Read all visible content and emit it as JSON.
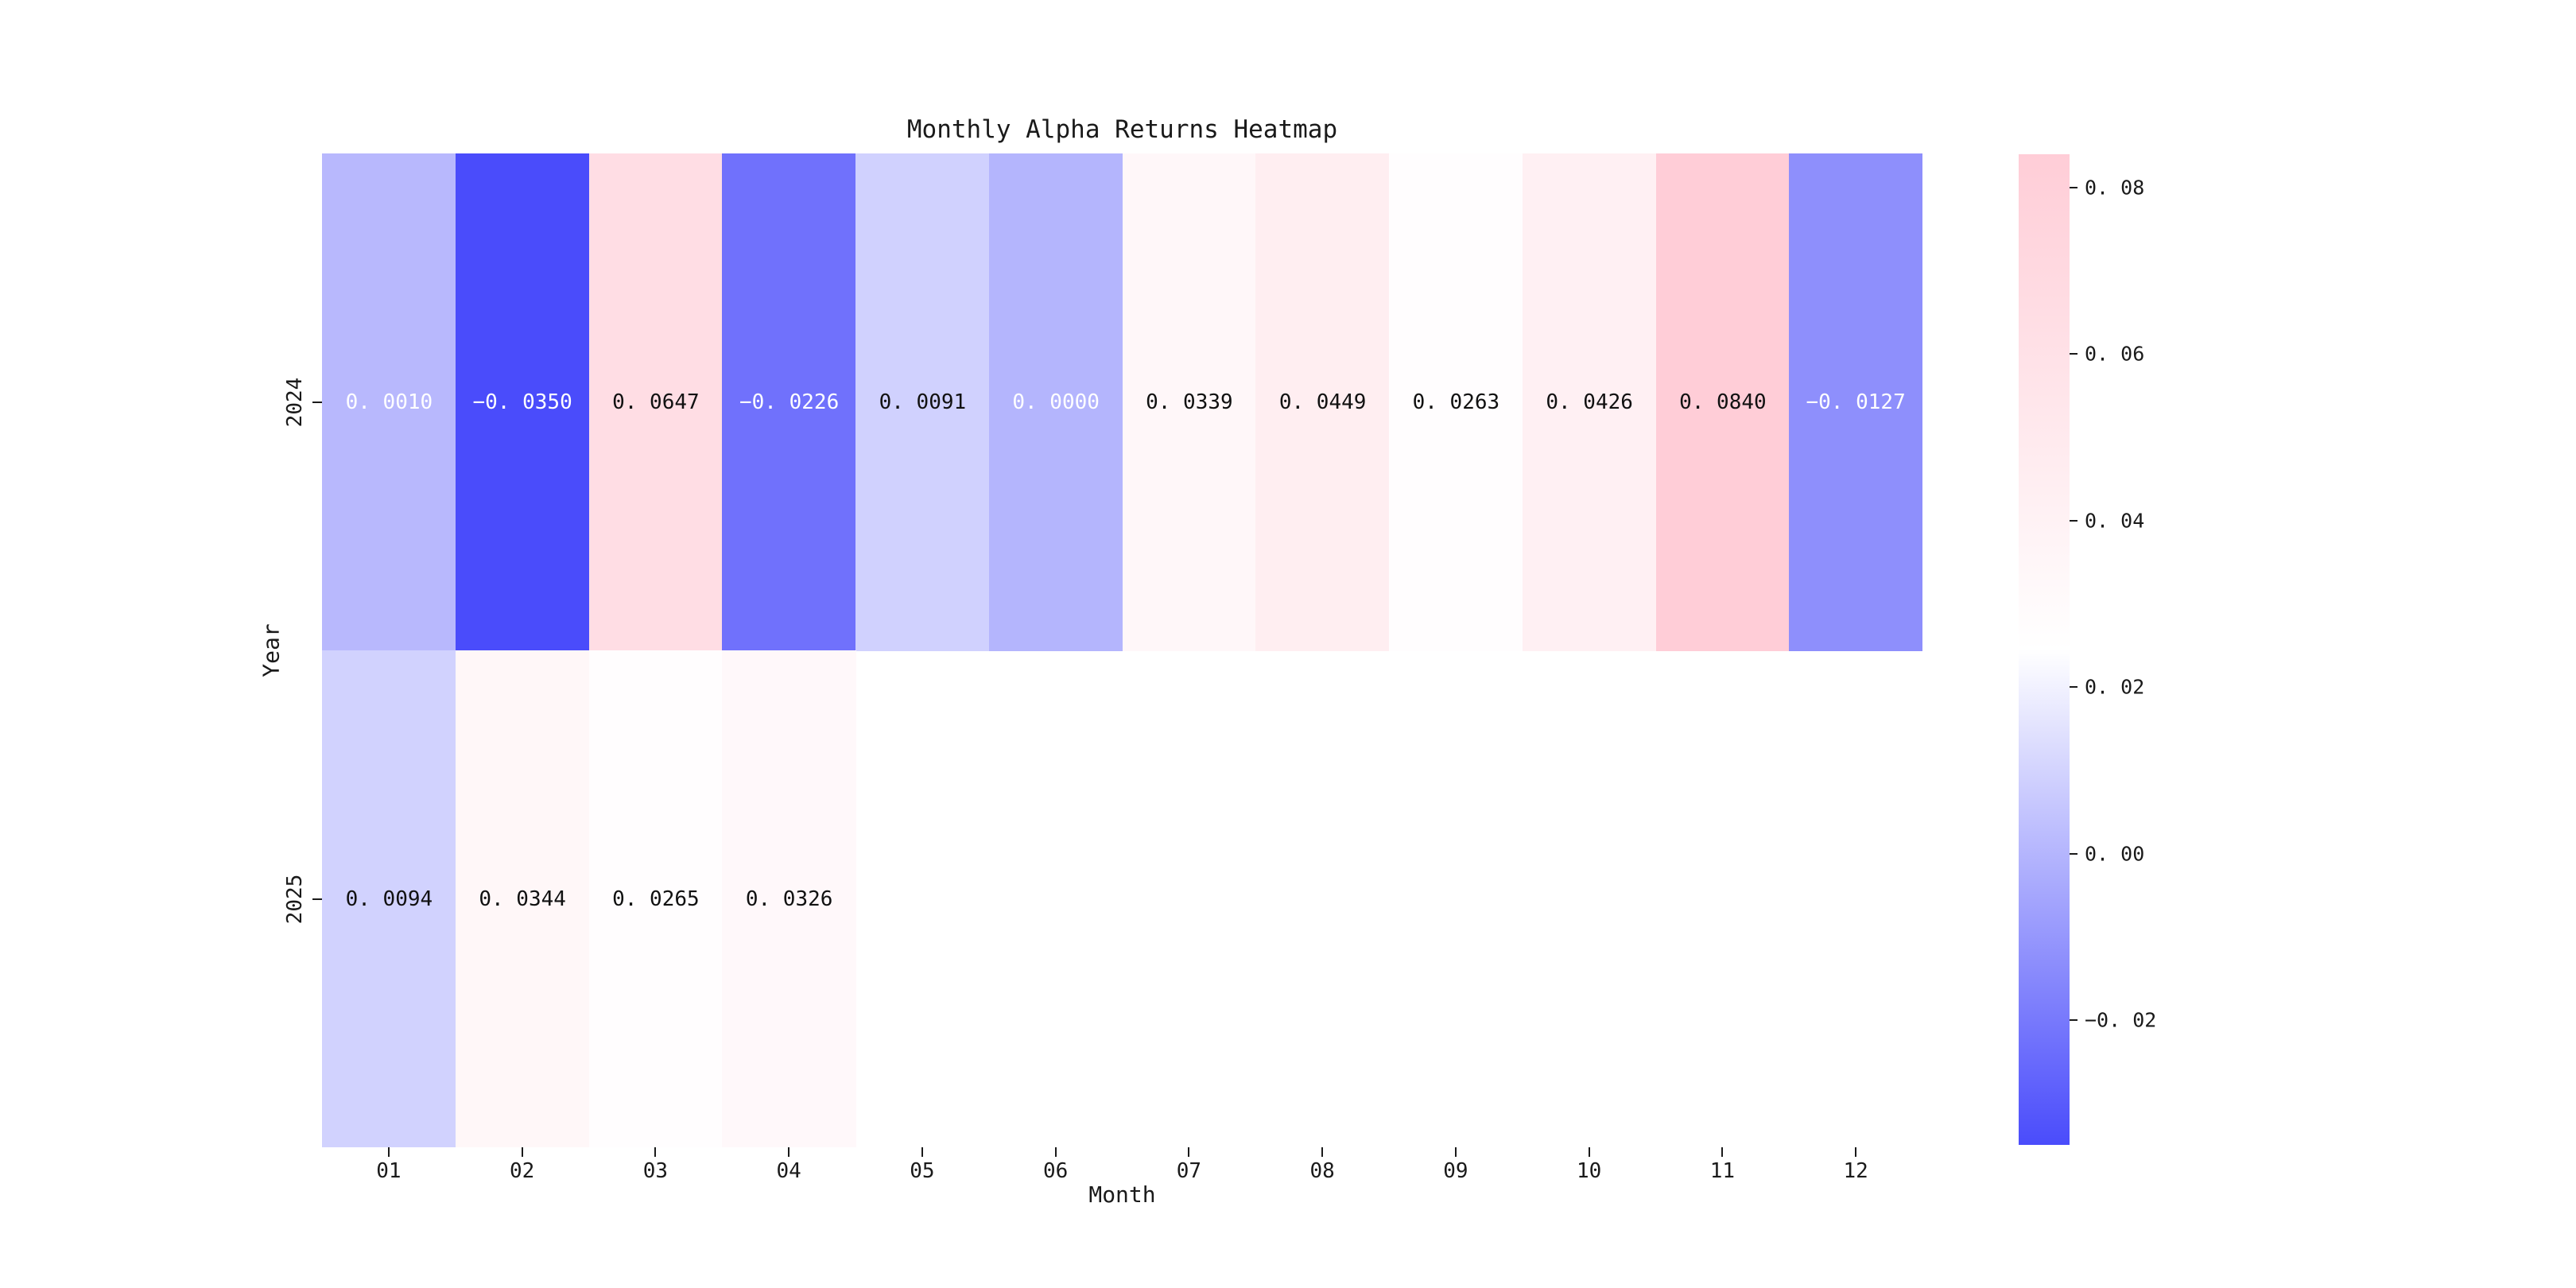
{
  "title": "Monthly Alpha Returns Heatmap",
  "chart_data": {
    "type": "heatmap",
    "title": "Monthly Alpha Returns Heatmap",
    "xlabel": "Month",
    "ylabel": "Year",
    "x_categories": [
      "01",
      "02",
      "03",
      "04",
      "05",
      "06",
      "07",
      "08",
      "09",
      "10",
      "11",
      "12"
    ],
    "y_categories": [
      "2024",
      "2025"
    ],
    "series": [
      {
        "name": "2024",
        "values": [
          0.001,
          -0.035,
          0.0647,
          -0.0226,
          0.0091,
          0.0,
          0.0339,
          0.0449,
          0.0263,
          0.0426,
          0.084,
          -0.0127
        ]
      },
      {
        "name": "2025",
        "values": [
          0.0094,
          0.0344,
          0.0265,
          0.0326,
          null,
          null,
          null,
          null,
          null,
          null,
          null,
          null
        ]
      }
    ],
    "annotation_decimals": 4,
    "colormap": {
      "type": "diverging-blue-white-pink",
      "min_color": "#4A4CFB",
      "mid_color": "#FFFFFF",
      "max_color": "#FFCDD7",
      "vmin": -0.035,
      "vmax": 0.084,
      "center": 0.0245
    },
    "colorbar": {
      "position": "right",
      "tick_values": [
        0.08,
        0.06,
        0.04,
        0.02,
        0.0,
        -0.02
      ],
      "tick_labels": [
        "0.08",
        "0.06",
        "0.04",
        "0.02",
        "0.00",
        "-0.02"
      ]
    },
    "missing_cell_color": "#FFFFFF",
    "grid": false,
    "annotation_text_colors": {
      "light_cells": "#111111",
      "dark_cells": "#FFFFFF"
    }
  }
}
